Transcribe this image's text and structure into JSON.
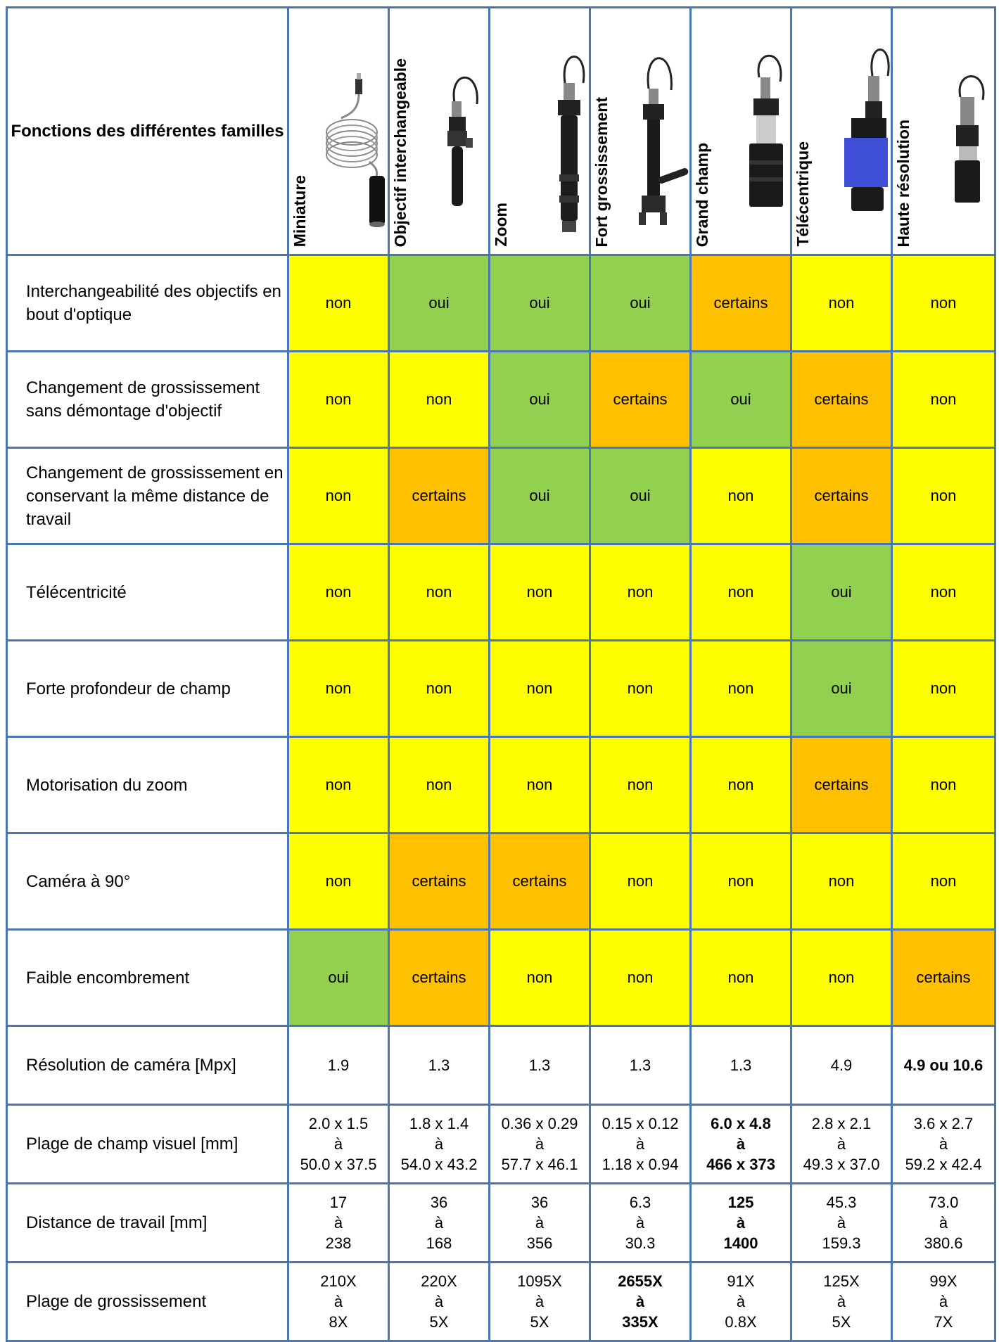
{
  "header": {
    "corner": "Fonctions des différentes familles",
    "columns": [
      {
        "label": "Miniature",
        "icon": "usb-cable-camera-icon"
      },
      {
        "label": "Objectif interchangeable",
        "icon": "interchangeable-lens-camera-icon"
      },
      {
        "label": "Zoom",
        "icon": "zoom-lens-camera-icon"
      },
      {
        "label": "Fort grossissement",
        "icon": "high-magnification-lens-icon"
      },
      {
        "label": "Grand champ",
        "icon": "wide-field-lens-icon"
      },
      {
        "label": "Télécentrique",
        "icon": "telecentric-lens-icon"
      },
      {
        "label": "Haute résolution",
        "icon": "high-resolution-camera-icon"
      }
    ]
  },
  "colors": {
    "non": "#ffff00",
    "oui": "#92d050",
    "certains": "#ffc000",
    "border": "#4a76b4"
  },
  "features": [
    {
      "label": "Interchangeabilité des objectifs en bout d'optique",
      "values": [
        "non",
        "oui",
        "oui",
        "oui",
        "certains",
        "non",
        "non"
      ]
    },
    {
      "label": "Changement de grossissement sans démontage d'objectif",
      "values": [
        "non",
        "non",
        "oui",
        "certains",
        "oui",
        "certains",
        "non"
      ]
    },
    {
      "label": "Changement de grossissement en conservant la même distance de travail",
      "values": [
        "non",
        "certains",
        "oui",
        "oui",
        "non",
        "certains",
        "non"
      ]
    },
    {
      "label": "Télécentricité",
      "values": [
        "non",
        "non",
        "non",
        "non",
        "non",
        "oui",
        "non"
      ]
    },
    {
      "label": "Forte profondeur de champ",
      "values": [
        "non",
        "non",
        "non",
        "non",
        "non",
        "oui",
        "non"
      ]
    },
    {
      "label": "Motorisation du zoom",
      "values": [
        "non",
        "non",
        "non",
        "non",
        "non",
        "certains",
        "non"
      ]
    },
    {
      "label": "Caméra à 90°",
      "values": [
        "non",
        "certains",
        "certains",
        "non",
        "non",
        "non",
        "non"
      ]
    },
    {
      "label": "Faible encombrement",
      "values": [
        "oui",
        "certains",
        "non",
        "non",
        "non",
        "non",
        "certains"
      ]
    }
  ],
  "specs": [
    {
      "label": "Résolution de caméra [Mpx]",
      "values": [
        {
          "lines": [
            "1.9"
          ],
          "bold": false
        },
        {
          "lines": [
            "1.3"
          ],
          "bold": false
        },
        {
          "lines": [
            "1.3"
          ],
          "bold": false
        },
        {
          "lines": [
            "1.3"
          ],
          "bold": false
        },
        {
          "lines": [
            "1.3"
          ],
          "bold": false
        },
        {
          "lines": [
            "4.9"
          ],
          "bold": false
        },
        {
          "lines": [
            "4.9 ou 10.6"
          ],
          "bold": true
        }
      ]
    },
    {
      "label": "Plage de champ visuel [mm]",
      "values": [
        {
          "lines": [
            "2.0 x 1.5",
            "à",
            "50.0 x 37.5"
          ],
          "bold": false
        },
        {
          "lines": [
            "1.8 x 1.4",
            "à",
            "54.0 x 43.2"
          ],
          "bold": false
        },
        {
          "lines": [
            "0.36 x 0.29",
            "à",
            "57.7 x 46.1"
          ],
          "bold": false
        },
        {
          "lines": [
            "0.15 x 0.12",
            "à",
            "1.18 x 0.94"
          ],
          "bold": false
        },
        {
          "lines": [
            "6.0 x 4.8",
            "à",
            "466 x 373"
          ],
          "bold": true
        },
        {
          "lines": [
            "2.8 x 2.1",
            "à",
            "49.3 x 37.0"
          ],
          "bold": false
        },
        {
          "lines": [
            "3.6 x 2.7",
            "à",
            "59.2 x 42.4"
          ],
          "bold": false
        }
      ]
    },
    {
      "label": "Distance de travail [mm]",
      "values": [
        {
          "lines": [
            "17",
            "à",
            "238"
          ],
          "bold": false
        },
        {
          "lines": [
            "36",
            "à",
            "168"
          ],
          "bold": false
        },
        {
          "lines": [
            "36",
            "à",
            "356"
          ],
          "bold": false
        },
        {
          "lines": [
            "6.3",
            "à",
            "30.3"
          ],
          "bold": false
        },
        {
          "lines": [
            "125",
            "à",
            "1400"
          ],
          "bold": true
        },
        {
          "lines": [
            "45.3",
            "à",
            "159.3"
          ],
          "bold": false
        },
        {
          "lines": [
            "73.0",
            "à",
            "380.6"
          ],
          "bold": false
        }
      ]
    },
    {
      "label": "Plage de grossissement",
      "values": [
        {
          "lines": [
            "210X",
            "à",
            "8X"
          ],
          "bold": false
        },
        {
          "lines": [
            "220X",
            "à",
            "5X"
          ],
          "bold": false
        },
        {
          "lines": [
            "1095X",
            "à",
            "5X"
          ],
          "bold": false
        },
        {
          "lines": [
            "2655X",
            "à",
            "335X"
          ],
          "bold": true
        },
        {
          "lines": [
            "91X",
            "à",
            "0.8X"
          ],
          "bold": false
        },
        {
          "lines": [
            "125X",
            "à",
            "5X"
          ],
          "bold": false
        },
        {
          "lines": [
            "99X",
            "à",
            "7X"
          ],
          "bold": false
        }
      ]
    }
  ]
}
